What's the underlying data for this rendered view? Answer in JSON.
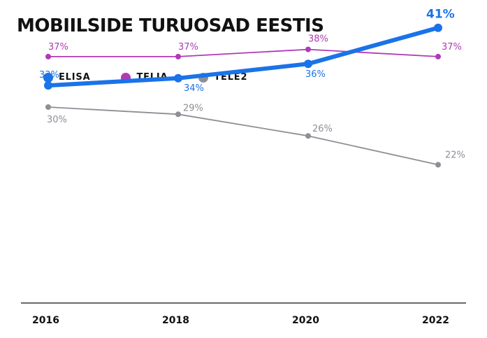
{
  "title": "MOBIILSIDE TURUOSAD EESTIS",
  "chart_data": {
    "type": "line",
    "title": "MOBIILSIDE TURUOSAD EESTIS",
    "x": [
      "2016",
      "2018",
      "2020",
      "2022"
    ],
    "legend_position": "top-left",
    "grid": false,
    "series": [
      {
        "name": "ELISA",
        "color": "#1a73e8",
        "values": [
          33,
          34,
          36,
          41
        ],
        "labels": [
          "33%",
          "34%",
          "36%",
          "41%"
        ]
      },
      {
        "name": "TELIA",
        "color": "#b03ab5",
        "values": [
          37,
          37,
          38,
          37
        ],
        "labels": [
          "37%",
          "37%",
          "38%",
          "37%"
        ]
      },
      {
        "name": "TELE2",
        "color": "#8e8e96",
        "values": [
          30,
          29,
          26,
          22
        ],
        "labels": [
          "30%",
          "29%",
          "26%",
          "22%"
        ]
      }
    ]
  }
}
